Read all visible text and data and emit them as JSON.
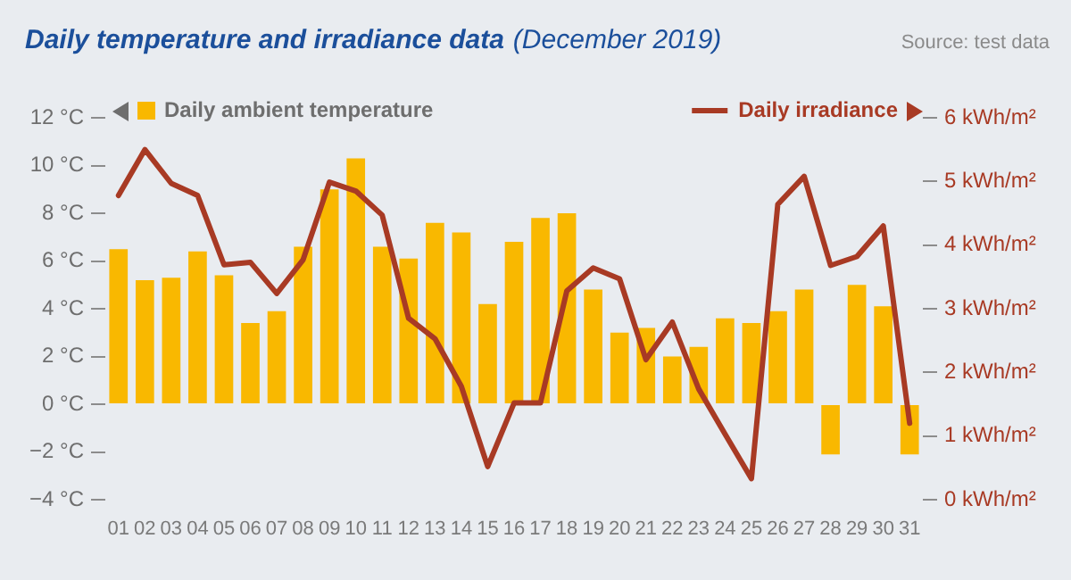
{
  "chart_data": {
    "type": "bar",
    "title": "Daily temperature and irradiance data",
    "subtitle": "(December 2019)",
    "annotations": [
      "Source: test data"
    ],
    "categories": [
      "01",
      "02",
      "03",
      "04",
      "05",
      "06",
      "07",
      "08",
      "09",
      "10",
      "11",
      "12",
      "13",
      "14",
      "15",
      "16",
      "17",
      "18",
      "19",
      "20",
      "21",
      "22",
      "23",
      "24",
      "25",
      "26",
      "27",
      "28",
      "29",
      "30",
      "31"
    ],
    "series": [
      {
        "name": "Daily ambient temperature",
        "color": "#f9b800",
        "values": [
          6.5,
          5.2,
          5.3,
          6.4,
          5.4,
          3.4,
          3.9,
          6.6,
          9.0,
          10.3,
          6.6,
          6.1,
          7.6,
          7.2,
          4.2,
          6.8,
          7.8,
          8.0,
          4.8,
          3.0,
          3.2,
          2.0,
          2.4,
          3.6,
          3.4,
          3.9,
          4.8,
          -2.1,
          5.0,
          4.1,
          -2.1
        ]
      },
      {
        "name": "Daily irradiance",
        "type": "line",
        "axis": "y2",
        "color": "#a83a24",
        "values": [
          4.78,
          5.5,
          4.97,
          4.78,
          3.69,
          3.73,
          3.24,
          3.77,
          4.99,
          4.85,
          4.47,
          2.85,
          2.53,
          1.78,
          0.52,
          1.52,
          1.52,
          3.28,
          3.64,
          3.47,
          2.2,
          2.79,
          1.74,
          1.03,
          0.33,
          4.64,
          5.08,
          3.68,
          3.82,
          4.3,
          1.2
        ]
      }
    ],
    "ylim": [
      -4,
      12
    ],
    "yticks": [
      {
        "value": -4,
        "label": "−4 °C"
      },
      {
        "value": -2,
        "label": "−2 °C"
      },
      {
        "value": 0,
        "label": "0 °C"
      },
      {
        "value": 2,
        "label": "2 °C"
      },
      {
        "value": 4,
        "label": "4 °C"
      },
      {
        "value": 6,
        "label": "6 °C"
      },
      {
        "value": 8,
        "label": "8 °C"
      },
      {
        "value": 10,
        "label": "10 °C"
      },
      {
        "value": 12,
        "label": "12 °C"
      }
    ],
    "y2lim": [
      0,
      6
    ],
    "y2ticks": [
      {
        "value": 0,
        "label": "0 kWh/m²"
      },
      {
        "value": 1,
        "label": "1 kWh/m²"
      },
      {
        "value": 2,
        "label": "2 kWh/m²"
      },
      {
        "value": 3,
        "label": "3 kWh/m²"
      },
      {
        "value": 4,
        "label": "4 kWh/m²"
      },
      {
        "value": 5,
        "label": "5 kWh/m²"
      },
      {
        "value": 6,
        "label": "6 kWh/m²"
      }
    ],
    "legend": "top"
  }
}
